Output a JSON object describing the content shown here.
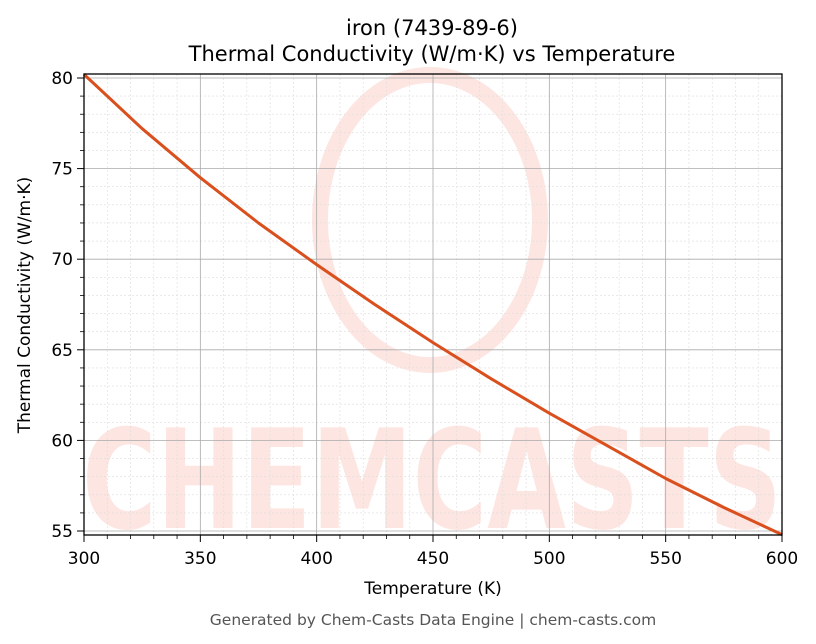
{
  "chart_data": {
    "type": "line",
    "title": "iron (7439-89-6)",
    "subtitle": "Thermal Conductivity (W/m·K) vs Temperature",
    "xlabel": "Temperature (K)",
    "ylabel": "Thermal Conductivity (W/m·K)",
    "xlim": [
      300,
      600
    ],
    "ylim": [
      54.78,
      80.22
    ],
    "xticks": [
      300,
      350,
      400,
      450,
      500,
      550,
      600
    ],
    "yticks": [
      55,
      60,
      65,
      70,
      75,
      80
    ],
    "grid": true,
    "line_color": "#d9501e",
    "series": [
      {
        "x": [
          300,
          325,
          350,
          375,
          400,
          425,
          450,
          475,
          500,
          525,
          550,
          575,
          600
        ],
        "y": [
          80.2,
          77.2,
          74.5,
          72.0,
          69.7,
          67.5,
          65.4,
          63.4,
          61.5,
          59.7,
          57.9,
          56.3,
          54.8
        ]
      }
    ]
  },
  "footer": "Generated by Chem-Casts Data Engine | chem-casts.com",
  "watermark": "CHEMCASTS"
}
